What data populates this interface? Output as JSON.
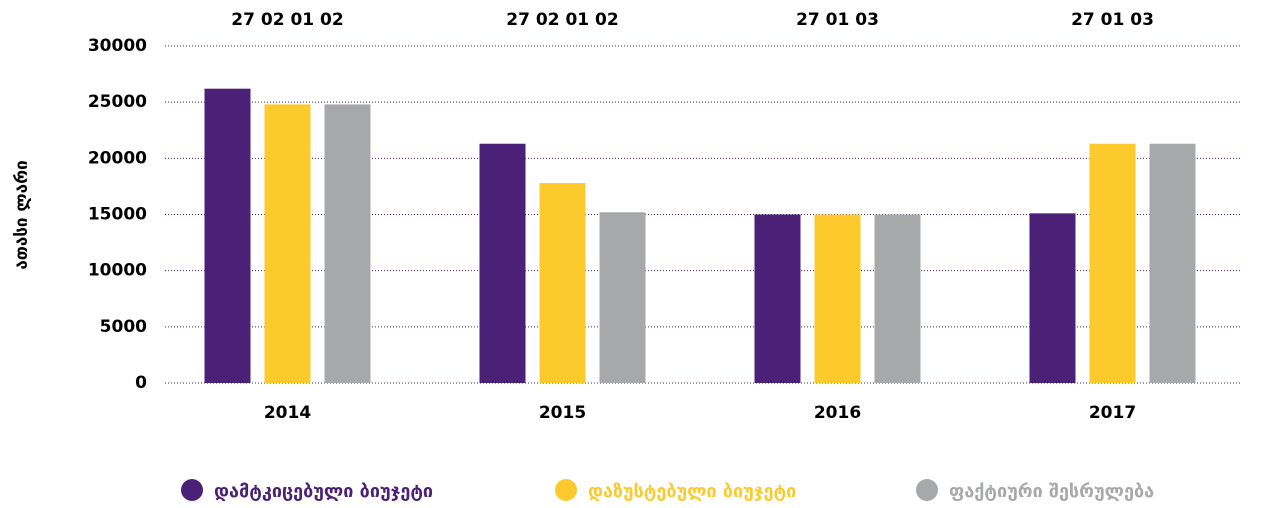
{
  "chart_data": {
    "type": "bar",
    "y_label": "ათასი ლარი",
    "categories": [
      "2014",
      "2015",
      "2016",
      "2017"
    ],
    "group_labels": [
      "27 02 01 02",
      "27 02 01 02",
      "27 01 03",
      "27 01 03"
    ],
    "series": [
      {
        "name": "დამტკიცებული ბიუჯეტი",
        "color": "#4b2177",
        "values": [
          26200,
          21300,
          15000,
          15100
        ]
      },
      {
        "name": "დაზუსტებული ბიუჯეტი",
        "color": "#fdca2e",
        "values": [
          24800,
          17800,
          15000,
          21300
        ]
      },
      {
        "name": "ფაქტიური შესრულება",
        "color": "#a7a8aa",
        "values": [
          24800,
          15200,
          15000,
          21300
        ]
      }
    ],
    "ylim": [
      0,
      30000
    ],
    "yticks": [
      0,
      5000,
      10000,
      15000,
      20000,
      25000,
      30000
    ],
    "grid": true
  }
}
